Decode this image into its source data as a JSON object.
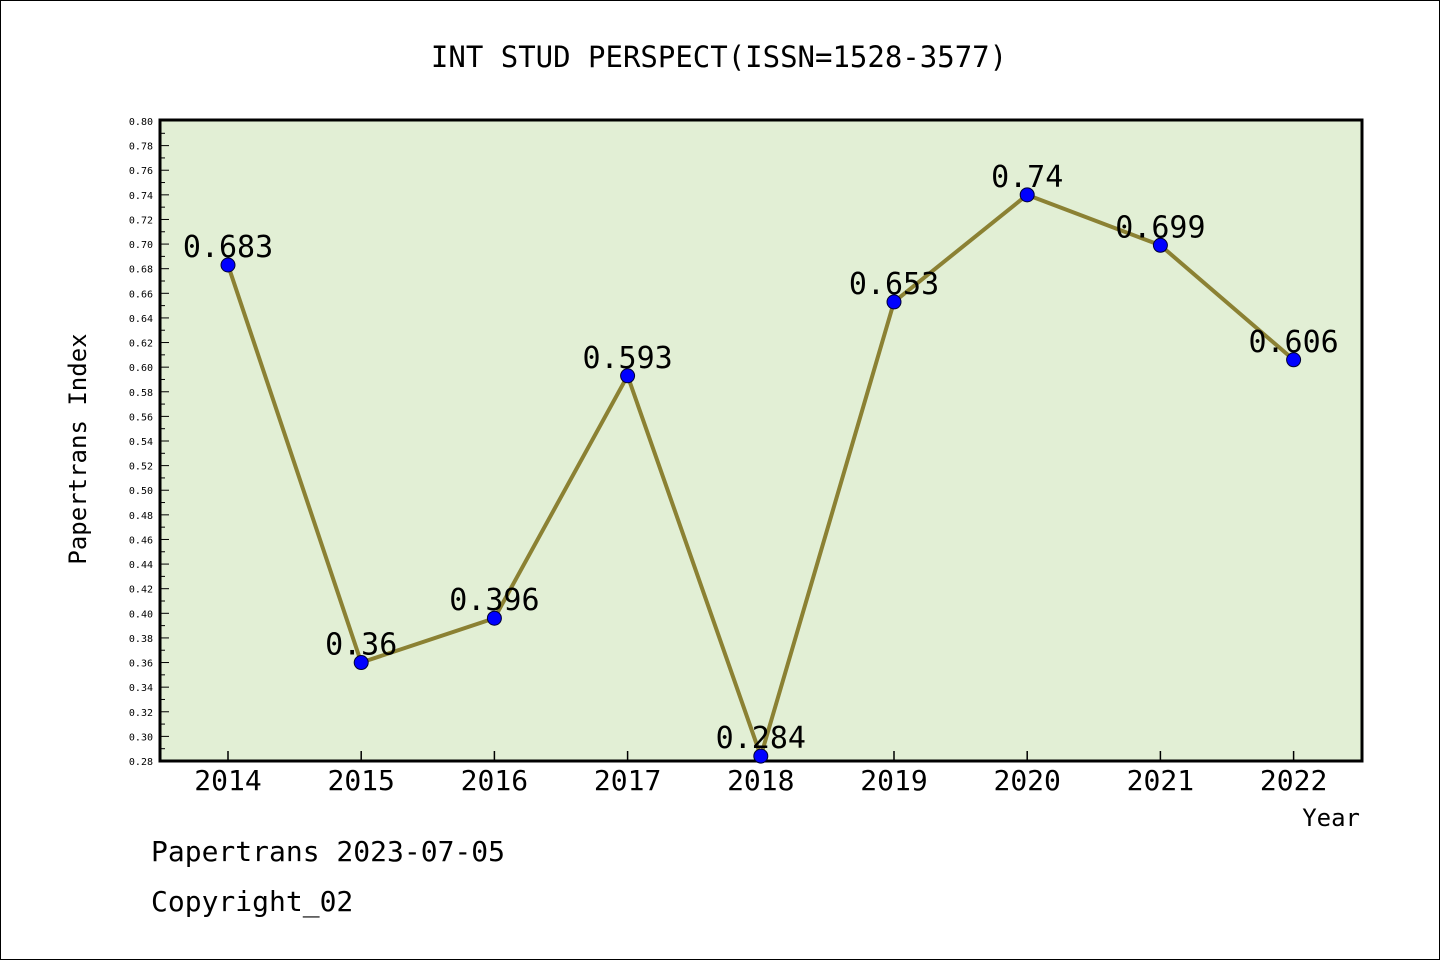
{
  "chart_data": {
    "type": "line",
    "title": "INT STUD PERSPECT(ISSN=1528-3577)",
    "xlabel": "Year",
    "ylabel": "Papertrans Index",
    "categories": [
      "2014",
      "2015",
      "2016",
      "2017",
      "2018",
      "2019",
      "2020",
      "2021",
      "2022"
    ],
    "series": [
      {
        "values": [
          0.683,
          0.36,
          0.396,
          0.593,
          0.284,
          0.653,
          0.74,
          0.699,
          0.606
        ],
        "labels": [
          "0.683",
          "0.36",
          "0.396",
          "0.593",
          "0.284",
          "0.653",
          "0.74",
          "0.699",
          "0.606"
        ],
        "line_color": "#8b8133",
        "marker_color": "#0000ff"
      }
    ],
    "ylim": [
      0.28,
      0.8
    ],
    "ytick_step": 0.02,
    "grid": false,
    "plot_background": "#e2efd5"
  },
  "footer": {
    "line1": "Papertrans 2023-07-05",
    "line2": "Copyright_02"
  }
}
